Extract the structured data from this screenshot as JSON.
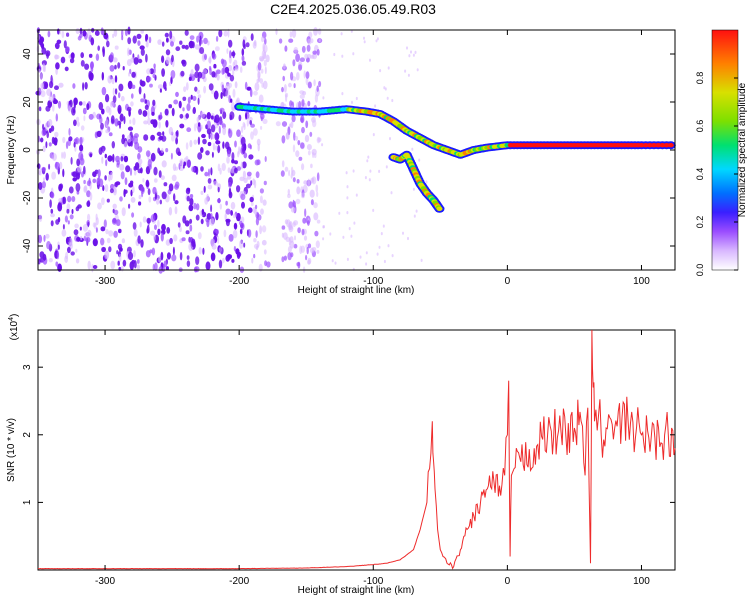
{
  "title": "C2E4.2025.036.05.49.R03",
  "colors": {
    "snr_line": "#ee2b2b",
    "scatter_purple": "#7a22e0",
    "colormap": [
      "#ffffff",
      "#d9b8ff",
      "#9b4dff",
      "#3a1fff",
      "#0070ff",
      "#00d8ff",
      "#00e070",
      "#7de000",
      "#d8e000",
      "#ff8000",
      "#ff1010"
    ]
  },
  "chart_data": [
    {
      "type": "heatmap",
      "xlabel": "Height of straight line (km)",
      "ylabel": "Frequency (Hz)",
      "xlim": [
        -350,
        125
      ],
      "ylim": [
        -50,
        50
      ],
      "xticks": [
        -300,
        -200,
        -100,
        0,
        100
      ],
      "yticks": [
        -40,
        -20,
        0,
        20,
        40
      ],
      "colorbar": {
        "label": "Normalized spectral amplitude",
        "range": [
          0,
          1
        ],
        "ticks": [
          "0.0",
          "0.2",
          "0.4",
          "0.6",
          "0.8"
        ],
        "tick_values": [
          0,
          0.2,
          0.4,
          0.6,
          0.8
        ]
      },
      "noise_region_x": [
        -350,
        -140
      ],
      "main_track": {
        "x": [
          -200,
          -180,
          -160,
          -140,
          -120,
          -105,
          -95,
          -85,
          -75,
          -65,
          -55,
          -45,
          -35,
          -25,
          -15,
          0,
          20,
          40,
          60,
          80,
          100,
          125
        ],
        "y": [
          18,
          17,
          16,
          16,
          17,
          16,
          15,
          12,
          8,
          5,
          2,
          0,
          -2,
          0,
          1,
          2,
          2,
          2,
          2,
          2,
          2,
          2
        ]
      },
      "branch_track": {
        "x": [
          -85,
          -80,
          -75,
          -70,
          -65,
          -60,
          -55,
          -50
        ],
        "y": [
          -3,
          -4,
          -2,
          -8,
          -14,
          -18,
          -21,
          -25
        ]
      }
    },
    {
      "type": "line",
      "xlabel": "Height of straight line (km)",
      "ylabel": "SNR (10 * v/v)",
      "scale_label": "(x10",
      "scale_exponent": "4",
      "xlim": [
        -350,
        125
      ],
      "ylim": [
        0,
        3.55
      ],
      "xticks": [
        -300,
        -200,
        -100,
        0,
        100
      ],
      "yticks": [
        1,
        2,
        3
      ],
      "series": [
        {
          "x": [
            -350,
            -300,
            -250,
            -200,
            -150,
            -120,
            -100,
            -90,
            -80,
            -70,
            -65,
            -60,
            -58,
            -56,
            -55,
            -54,
            -52,
            -50,
            -48,
            -45,
            -40,
            -35,
            -30,
            -25,
            -20,
            -15,
            -10,
            -5,
            -2,
            0,
            1,
            2,
            3,
            5,
            10,
            20,
            30,
            40,
            50,
            55,
            58,
            60,
            62,
            63,
            64,
            65,
            68,
            70,
            80,
            90,
            100,
            110,
            120,
            125
          ],
          "y": [
            0.02,
            0.02,
            0.02,
            0.02,
            0.03,
            0.05,
            0.08,
            0.1,
            0.15,
            0.3,
            0.6,
            1.0,
            1.5,
            2.2,
            1.6,
            1.2,
            0.6,
            0.3,
            0.2,
            0.1,
            0.05,
            0.3,
            0.6,
            0.8,
            1.0,
            1.2,
            1.3,
            1.1,
            1.4,
            2.0,
            2.8,
            0.2,
            1.4,
            1.5,
            1.6,
            1.8,
            2.0,
            2.05,
            2.1,
            2.2,
            1.4,
            2.4,
            0.1,
            3.55,
            2.7,
            2.2,
            2.3,
            2.0,
            2.1,
            2.2,
            2.0,
            1.95,
            2.0,
            1.8
          ]
        }
      ]
    }
  ]
}
